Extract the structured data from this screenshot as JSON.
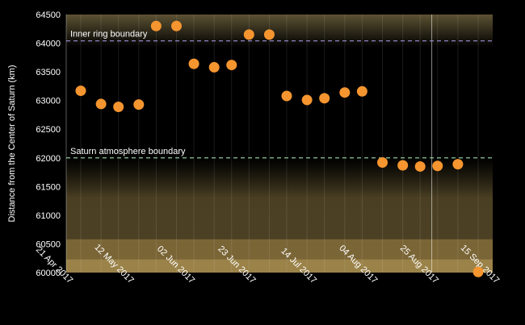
{
  "chart_data": {
    "type": "scatter",
    "title": "",
    "xlabel": "",
    "ylabel": "Distance from the Center of Saturn (km)",
    "ylim": [
      60000,
      64500
    ],
    "yticks": [
      60000,
      60500,
      61000,
      61500,
      62000,
      62500,
      63000,
      63500,
      64000,
      64500
    ],
    "xlim": [
      "2017-04-21",
      "2017-09-15"
    ],
    "xticks": [
      {
        "date": "2017-04-21",
        "label": "21 Apr 2017"
      },
      {
        "date": "2017-05-12",
        "label": "12 May 2017"
      },
      {
        "date": "2017-06-02",
        "label": "02 Jun 2017"
      },
      {
        "date": "2017-06-23",
        "label": "23 Jun 2017"
      },
      {
        "date": "2017-07-14",
        "label": "14 Jul 2017"
      },
      {
        "date": "2017-08-04",
        "label": "04 Aug 2017"
      },
      {
        "date": "2017-08-25",
        "label": "25 Aug 2017"
      },
      {
        "date": "2017-09-15",
        "label": "15 Sep 2017"
      }
    ],
    "points": [
      {
        "date": "2017-04-26",
        "y": 63170
      },
      {
        "date": "2017-05-03",
        "y": 62940
      },
      {
        "date": "2017-05-09",
        "y": 62890
      },
      {
        "date": "2017-05-16",
        "y": 62930
      },
      {
        "date": "2017-05-22",
        "y": 64300
      },
      {
        "date": "2017-05-29",
        "y": 64300
      },
      {
        "date": "2017-06-04",
        "y": 63640
      },
      {
        "date": "2017-06-11",
        "y": 63580
      },
      {
        "date": "2017-06-17",
        "y": 63620
      },
      {
        "date": "2017-06-23",
        "y": 64150
      },
      {
        "date": "2017-06-30",
        "y": 64150
      },
      {
        "date": "2017-07-06",
        "y": 63080
      },
      {
        "date": "2017-07-13",
        "y": 63010
      },
      {
        "date": "2017-07-19",
        "y": 63040
      },
      {
        "date": "2017-07-26",
        "y": 63140
      },
      {
        "date": "2017-08-01",
        "y": 63160
      },
      {
        "date": "2017-08-08",
        "y": 61920
      },
      {
        "date": "2017-08-15",
        "y": 61870
      },
      {
        "date": "2017-08-21",
        "y": 61850
      },
      {
        "date": "2017-08-27",
        "y": 61860
      },
      {
        "date": "2017-09-03",
        "y": 61890
      },
      {
        "date": "2017-09-10",
        "y": 60010
      }
    ],
    "reference_lines": [
      {
        "label": "Inner ring boundary",
        "y": 64040,
        "color": "#9b8fd8"
      },
      {
        "label": "Saturn atmosphere boundary",
        "y": 62000,
        "color": "#8ec89a"
      }
    ],
    "highlight_date": "2017-08-25",
    "colors": {
      "marker": "#f5952f",
      "background": "#000000",
      "atmosphere_fill": "#4e4225",
      "lower_band": "#7a6536",
      "bottom_band": "#9a8248",
      "axis_text": "#ffffff"
    },
    "grid": false,
    "legend": "none"
  }
}
